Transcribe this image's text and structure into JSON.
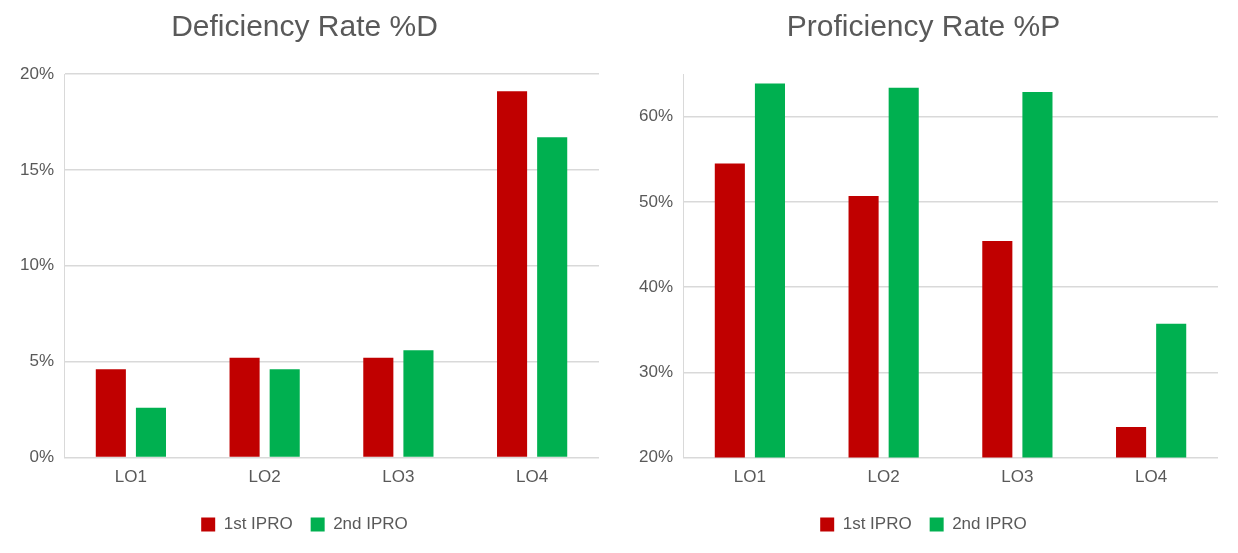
{
  "chart_data": [
    {
      "type": "bar",
      "title": "Deficiency Rate %D",
      "categories": [
        "LO1",
        "LO2",
        "LO3",
        "LO4"
      ],
      "series": [
        {
          "name": "1st IPRO",
          "color": "#c00000",
          "values": [
            4.6,
            5.2,
            5.2,
            19.1
          ]
        },
        {
          "name": "2nd IPRO",
          "color": "#00b050",
          "values": [
            2.6,
            4.6,
            5.6,
            16.7
          ]
        }
      ],
      "ylim": [
        0,
        20
      ],
      "yticks": [
        {
          "value": 0,
          "label": "0%"
        },
        {
          "value": 5,
          "label": "5%"
        },
        {
          "value": 10,
          "label": "10%"
        },
        {
          "value": 15,
          "label": "15%"
        },
        {
          "value": 20,
          "label": "20%"
        }
      ],
      "grid": "y",
      "legend": "bottom"
    },
    {
      "type": "bar",
      "title": "Proficiency Rate %P",
      "categories": [
        "LO1",
        "LO2",
        "LO3",
        "LO4"
      ],
      "series": [
        {
          "name": "1st IPRO",
          "color": "#c00000",
          "values": [
            54.5,
            50.7,
            45.4,
            23.6
          ]
        },
        {
          "name": "2nd IPRO",
          "color": "#00b050",
          "values": [
            63.9,
            63.4,
            62.9,
            35.7
          ]
        }
      ],
      "ylim": [
        20,
        65
      ],
      "yticks": [
        {
          "value": 20,
          "label": "20%"
        },
        {
          "value": 30,
          "label": "30%"
        },
        {
          "value": 40,
          "label": "40%"
        },
        {
          "value": 50,
          "label": "50%"
        },
        {
          "value": 60,
          "label": "60%"
        }
      ],
      "grid": "y",
      "legend": "bottom"
    }
  ]
}
